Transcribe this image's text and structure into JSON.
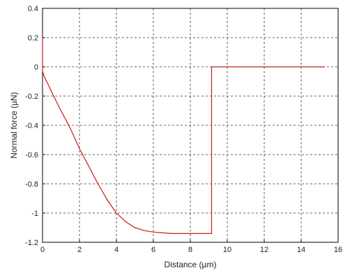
{
  "chart_data": {
    "type": "line",
    "title": "",
    "xlabel": "Distance (µm)",
    "ylabel": "Normal force (µN)",
    "xlim": [
      0,
      16
    ],
    "ylim": [
      -1.2,
      0.4
    ],
    "x_ticks": [
      0,
      2,
      4,
      6,
      8,
      10,
      12,
      14,
      16
    ],
    "x_tick_labels": [
      "0",
      "2",
      "4",
      "6",
      "8",
      "10",
      "12",
      "14",
      "16"
    ],
    "y_ticks": [
      0.4,
      0.2,
      0,
      -0.2,
      -0.4,
      -0.6,
      -0.8,
      -1,
      -1.2
    ],
    "y_tick_labels": [
      "0.4",
      "0.2",
      "0",
      "-0.2",
      "-0.4",
      "-0.6",
      "-0.8",
      "-1",
      "-1.2"
    ],
    "grid": true,
    "legend": "none",
    "colors": {
      "series": "#cc1a1a",
      "grid": "#333333",
      "axes": "#000000"
    },
    "series": [
      {
        "x": [
          0,
          0,
          0,
          0.1,
          0.3,
          0.6,
          1,
          1.5,
          2,
          2.5,
          3,
          3.5,
          4,
          4.5,
          5,
          5.5,
          6,
          6.5,
          7,
          7.5,
          8,
          8.5,
          9.15,
          9.15,
          10,
          12,
          14,
          15.3
        ],
        "y": [
          0.2,
          0,
          -0.03,
          -0.07,
          -0.12,
          -0.2,
          -0.3,
          -0.42,
          -0.56,
          -0.68,
          -0.8,
          -0.91,
          -1.0,
          -1.06,
          -1.1,
          -1.12,
          -1.13,
          -1.135,
          -1.14,
          -1.14,
          -1.14,
          -1.14,
          -1.14,
          0,
          0,
          0,
          0,
          0
        ]
      }
    ]
  }
}
